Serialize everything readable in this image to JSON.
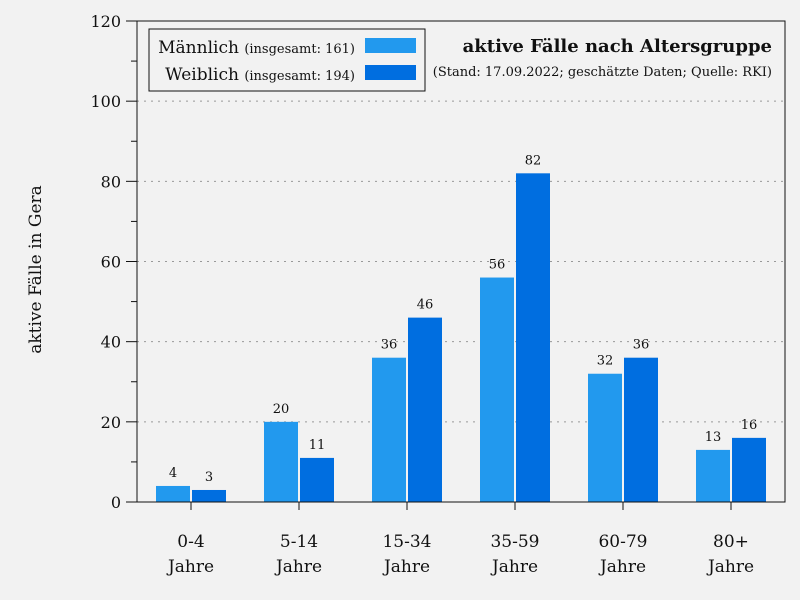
{
  "chart_data": {
    "type": "bar",
    "title": "aktive Fälle nach Altersgruppe",
    "subtitle": "(Stand: 17.09.2022; geschätzte Daten; Quelle: RKI)",
    "ylabel": "aktive Fälle in Gera",
    "xlabel": "",
    "ylim": [
      0,
      120
    ],
    "yticks": [
      "0",
      "20",
      "40",
      "60",
      "80",
      "100",
      "120"
    ],
    "grid": true,
    "legend_position": "top-left",
    "categories": [
      [
        "0-4",
        "Jahre"
      ],
      [
        "5-14",
        "Jahre"
      ],
      [
        "15-34",
        "Jahre"
      ],
      [
        "35-59",
        "Jahre"
      ],
      [
        "60-79",
        "Jahre"
      ],
      [
        "80+",
        "Jahre"
      ]
    ],
    "series": [
      {
        "name": "Männlich",
        "legend_note": "(insgesamt: 161)",
        "color": "#2299ee",
        "values": [
          4,
          20,
          36,
          56,
          32,
          13
        ]
      },
      {
        "name": "Weiblich",
        "legend_note": "(insgesamt: 194)",
        "color": "#006ee0",
        "values": [
          3,
          11,
          46,
          82,
          36,
          16
        ]
      }
    ]
  }
}
